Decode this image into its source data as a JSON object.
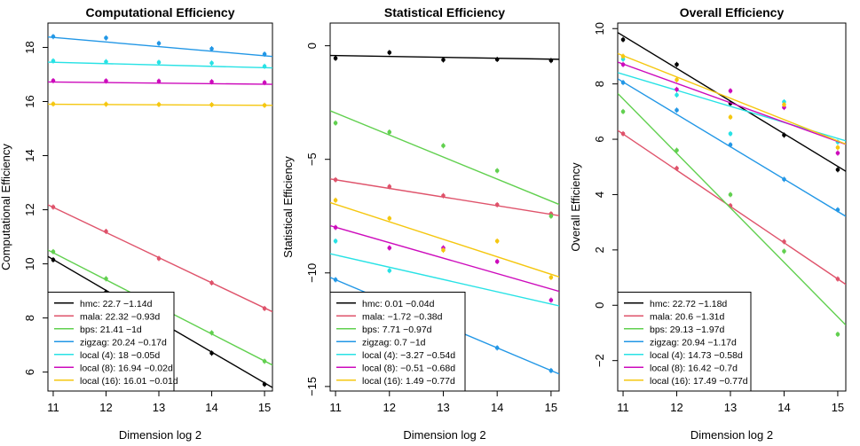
{
  "chart_data": [
    {
      "type": "scatter",
      "title": "Computational Efficiency",
      "xlabel": "Dimension log 2",
      "ylabel": "Computational Efficiency",
      "xlim": [
        10.9,
        15.15
      ],
      "ylim": [
        5.3,
        18.9
      ],
      "xticks": [
        11,
        12,
        13,
        14,
        15
      ],
      "yticks": [
        6,
        8,
        10,
        12,
        14,
        16,
        18
      ],
      "legend_position": "bottom-left",
      "series": [
        {
          "name": "hmc: 22.7 −1.14d",
          "color": "#000000",
          "x": [
            11,
            12,
            13,
            14,
            15
          ],
          "values": [
            10.15,
            8.95,
            null,
            6.7,
            5.55
          ],
          "fit": [
            22.7,
            -1.14
          ]
        },
        {
          "name": "mala: 22.32 −0.93d",
          "color": "#DF536B",
          "x": [
            11,
            12,
            13,
            14,
            15
          ],
          "values": [
            12.1,
            11.2,
            10.2,
            9.3,
            8.35
          ],
          "fit": [
            22.32,
            -0.93
          ]
        },
        {
          "name": "bps: 21.41 −1d",
          "color": "#61D04F",
          "x": [
            11,
            12,
            13,
            14,
            15
          ],
          "values": [
            10.45,
            9.45,
            null,
            7.45,
            6.4
          ],
          "fit": [
            21.41,
            -1.0
          ]
        },
        {
          "name": "zigzag: 20.24 −0.17d",
          "color": "#2297E6",
          "x": [
            11,
            12,
            13,
            14,
            15
          ],
          "values": [
            18.4,
            18.35,
            18.15,
            17.95,
            17.75
          ],
          "fit": [
            20.24,
            -0.17
          ]
        },
        {
          "name": "local (4): 18 −0.05d",
          "color": "#28E2E5",
          "x": [
            11,
            12,
            13,
            14,
            15
          ],
          "values": [
            17.5,
            17.47,
            17.45,
            17.42,
            17.3
          ],
          "fit": [
            18.0,
            -0.05
          ]
        },
        {
          "name": "local (8): 16.94 −0.02d",
          "color": "#CD0BBC",
          "x": [
            11,
            12,
            13,
            14,
            15
          ],
          "values": [
            16.77,
            16.76,
            16.75,
            16.73,
            16.7
          ],
          "fit": [
            16.94,
            -0.02
          ]
        },
        {
          "name": "local (16): 16.01 −0.01d",
          "color": "#F5C710",
          "x": [
            11,
            12,
            13,
            14,
            15
          ],
          "values": [
            15.91,
            15.9,
            15.89,
            15.88,
            15.86
          ],
          "fit": [
            16.01,
            -0.01
          ]
        }
      ]
    },
    {
      "type": "scatter",
      "title": "Statistical Efficiency",
      "xlabel": "Dimension log 2",
      "ylabel": "Statistical Efficiency",
      "xlim": [
        10.9,
        15.15
      ],
      "ylim": [
        -15.2,
        1.0
      ],
      "xticks": [
        11,
        12,
        13,
        14,
        15
      ],
      "yticks": [
        0,
        -5,
        -10,
        -15
      ],
      "legend_position": "bottom-left",
      "series": [
        {
          "name": "hmc: 0.01 −0.04d",
          "color": "#000000",
          "x": [
            11,
            12,
            13,
            14,
            15
          ],
          "values": [
            -0.55,
            -0.3,
            -0.62,
            -0.6,
            -0.65
          ],
          "fit": [
            0.01,
            -0.04
          ]
        },
        {
          "name": "mala: −1.72 −0.38d",
          "color": "#DF536B",
          "x": [
            11,
            12,
            13,
            14,
            15
          ],
          "values": [
            -5.9,
            -6.2,
            -6.6,
            -7.0,
            -7.4
          ],
          "fit": [
            -1.72,
            -0.38
          ]
        },
        {
          "name": "bps: 7.71 −0.97d",
          "color": "#61D04F",
          "x": [
            11,
            12,
            13,
            14,
            15
          ],
          "values": [
            -3.4,
            -3.8,
            -4.4,
            -5.5,
            -7.5
          ],
          "fit": [
            7.71,
            -0.97
          ]
        },
        {
          "name": "zigzag: 0.7 −1d",
          "color": "#2297E6",
          "x": [
            11,
            12,
            13,
            14,
            15
          ],
          "values": [
            -10.3,
            -11.3,
            null,
            -13.3,
            -14.3
          ],
          "fit": [
            0.7,
            -1.0
          ]
        },
        {
          "name": "local (4): −3.27 −0.54d",
          "color": "#28E2E5",
          "x": [
            11,
            12,
            13,
            14,
            15
          ],
          "values": [
            -8.6,
            -9.9,
            -11.2,
            null,
            null
          ],
          "fit": [
            -3.27,
            -0.54
          ]
        },
        {
          "name": "local (8): −0.51 −0.68d",
          "color": "#CD0BBC",
          "x": [
            11,
            12,
            13,
            14,
            15
          ],
          "values": [
            -8.0,
            -8.9,
            -8.9,
            -9.5,
            -11.2
          ],
          "fit": [
            -0.51,
            -0.68
          ]
        },
        {
          "name": "local (16): 1.49 −0.77d",
          "color": "#F5C710",
          "x": [
            11,
            12,
            13,
            14,
            15
          ],
          "values": [
            -6.8,
            -7.6,
            -9.0,
            -8.6,
            -10.2
          ],
          "fit": [
            1.49,
            -0.77
          ]
        }
      ]
    },
    {
      "type": "scatter",
      "title": "Overall Efficiency",
      "xlabel": "Dimension log 2",
      "ylabel": "Overall Efficiency",
      "xlim": [
        10.9,
        15.15
      ],
      "ylim": [
        -3.1,
        10.2
      ],
      "xticks": [
        11,
        12,
        13,
        14,
        15
      ],
      "yticks": [
        10,
        8,
        6,
        4,
        2,
        0,
        -2
      ],
      "legend_position": "bottom-left",
      "series": [
        {
          "name": "hmc: 22.72 −1.18d",
          "color": "#000000",
          "x": [
            11,
            12,
            13,
            14,
            15
          ],
          "values": [
            9.6,
            8.7,
            7.3,
            6.15,
            4.9
          ],
          "fit": [
            22.72,
            -1.18
          ]
        },
        {
          "name": "mala: 20.6 −1.31d",
          "color": "#DF536B",
          "x": [
            11,
            12,
            13,
            14,
            15
          ],
          "values": [
            6.2,
            4.95,
            3.6,
            2.3,
            0.95
          ],
          "fit": [
            20.6,
            -1.31
          ]
        },
        {
          "name": "bps: 29.13 −1.97d",
          "color": "#61D04F",
          "x": [
            11,
            12,
            13,
            14,
            15
          ],
          "values": [
            7.0,
            5.6,
            4.0,
            1.95,
            -1.05
          ],
          "fit": [
            29.13,
            -1.97
          ]
        },
        {
          "name": "zigzag: 20.94 −1.17d",
          "color": "#2297E6",
          "x": [
            11,
            12,
            13,
            14,
            15
          ],
          "values": [
            8.05,
            7.05,
            5.8,
            4.55,
            3.45
          ],
          "fit": [
            20.94,
            -1.17
          ]
        },
        {
          "name": "local (4): 14.73 −0.58d",
          "color": "#28E2E5",
          "x": [
            11,
            12,
            13,
            14,
            15
          ],
          "values": [
            8.9,
            7.6,
            6.2,
            7.35,
            5.9
          ],
          "fit": [
            14.73,
            -0.58
          ]
        },
        {
          "name": "local (8): 16.42 −0.7d",
          "color": "#CD0BBC",
          "x": [
            11,
            12,
            13,
            14,
            15
          ],
          "values": [
            8.7,
            7.8,
            7.75,
            7.15,
            5.5
          ],
          "fit": [
            16.42,
            -0.7
          ]
        },
        {
          "name": "local (16): 17.49 −0.77d",
          "color": "#F5C710",
          "x": [
            11,
            12,
            13,
            14,
            15
          ],
          "values": [
            9.0,
            8.15,
            6.8,
            7.25,
            5.7
          ],
          "fit": [
            17.49,
            -0.77
          ]
        }
      ]
    }
  ]
}
